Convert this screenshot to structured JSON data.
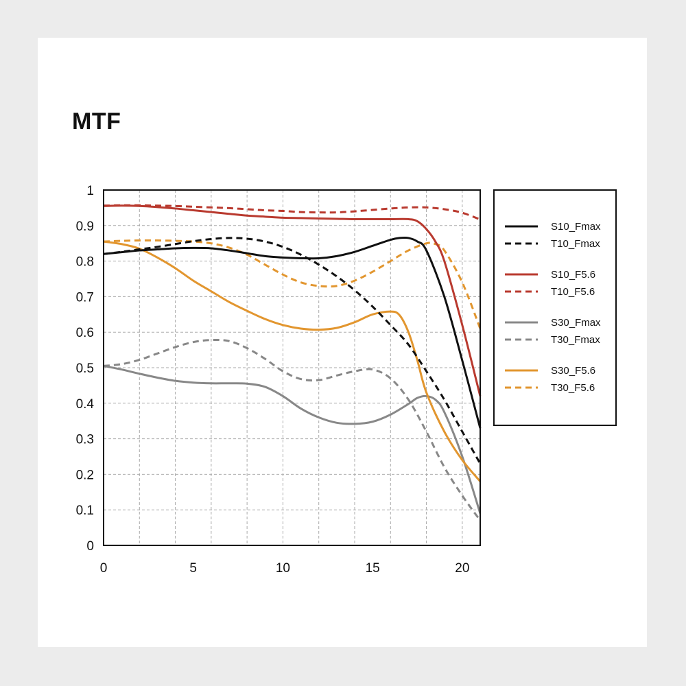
{
  "chart_data": {
    "type": "line",
    "title": "MTF",
    "xlabel": "",
    "ylabel": "",
    "xlim": [
      0,
      21
    ],
    "ylim": [
      0,
      1
    ],
    "xticks": [
      0,
      5,
      10,
      15,
      20
    ],
    "yticks": [
      0,
      0.1,
      0.2,
      0.3,
      0.4,
      0.5,
      0.6,
      0.7,
      0.8,
      0.9,
      1
    ],
    "ytick_labels": [
      "0",
      "0.1",
      "0.2",
      "0.3",
      "0.4",
      "0.5",
      "0.6",
      "0.7",
      "0.8",
      "0.9",
      "1"
    ],
    "xtick_labels": [
      "0",
      "5",
      "10",
      "15",
      "20"
    ],
    "grid": true,
    "legend_position": "right",
    "series": [
      {
        "name": "S10_Fmax",
        "color": "#111111",
        "dash": "solid",
        "x": [
          0,
          1,
          2,
          3,
          4,
          5,
          6,
          7,
          8,
          9,
          10,
          11,
          12,
          13,
          14,
          15,
          16,
          16.5,
          17,
          17.5,
          18,
          19,
          20,
          21
        ],
        "y": [
          0.82,
          0.825,
          0.83,
          0.833,
          0.836,
          0.837,
          0.836,
          0.83,
          0.822,
          0.814,
          0.81,
          0.808,
          0.808,
          0.814,
          0.826,
          0.843,
          0.86,
          0.865,
          0.865,
          0.855,
          0.83,
          0.7,
          0.52,
          0.33
        ]
      },
      {
        "name": "T10_Fmax",
        "color": "#111111",
        "dash": "dashed",
        "x": [
          0,
          1,
          2,
          3,
          4,
          5,
          6,
          7,
          8,
          9,
          10,
          11,
          12,
          13,
          14,
          15,
          16,
          17,
          18,
          19,
          20,
          21
        ],
        "y": [
          0.82,
          0.826,
          0.833,
          0.84,
          0.848,
          0.856,
          0.862,
          0.865,
          0.863,
          0.855,
          0.84,
          0.818,
          0.79,
          0.757,
          0.718,
          0.672,
          0.62,
          0.565,
          0.49,
          0.41,
          0.32,
          0.23
        ]
      },
      {
        "name": "S10_F5.6",
        "color": "#b93a2f",
        "dash": "solid",
        "x": [
          0,
          1,
          2,
          3,
          4,
          5,
          6,
          7,
          8,
          9,
          10,
          11,
          12,
          13,
          14,
          15,
          16,
          17,
          17.5,
          18,
          18.5,
          19,
          20,
          21
        ],
        "y": [
          0.955,
          0.956,
          0.955,
          0.952,
          0.948,
          0.943,
          0.938,
          0.933,
          0.928,
          0.925,
          0.922,
          0.921,
          0.92,
          0.919,
          0.918,
          0.918,
          0.918,
          0.918,
          0.912,
          0.89,
          0.855,
          0.8,
          0.62,
          0.42
        ]
      },
      {
        "name": "T10_F5.6",
        "color": "#b93a2f",
        "dash": "dashed",
        "x": [
          0,
          1,
          2,
          3,
          4,
          5,
          6,
          7,
          8,
          9,
          10,
          11,
          12,
          13,
          14,
          15,
          16,
          17,
          18,
          19,
          20,
          21
        ],
        "y": [
          0.956,
          0.957,
          0.957,
          0.956,
          0.955,
          0.953,
          0.951,
          0.949,
          0.946,
          0.943,
          0.941,
          0.938,
          0.937,
          0.937,
          0.94,
          0.944,
          0.948,
          0.951,
          0.951,
          0.946,
          0.936,
          0.917
        ]
      },
      {
        "name": "S30_Fmax",
        "color": "#888888",
        "dash": "solid",
        "x": [
          0,
          1,
          2,
          3,
          4,
          5,
          6,
          7,
          8,
          9,
          10,
          11,
          12,
          13,
          14,
          15,
          16,
          17,
          17.5,
          18,
          18.5,
          19,
          20,
          21
        ],
        "y": [
          0.505,
          0.495,
          0.483,
          0.472,
          0.463,
          0.458,
          0.456,
          0.456,
          0.455,
          0.446,
          0.42,
          0.385,
          0.36,
          0.345,
          0.342,
          0.348,
          0.368,
          0.398,
          0.415,
          0.42,
          0.41,
          0.375,
          0.25,
          0.09
        ]
      },
      {
        "name": "T30_Fmax",
        "color": "#888888",
        "dash": "dashed",
        "x": [
          0,
          1,
          2,
          3,
          4,
          5,
          6,
          7,
          8,
          9,
          10,
          11,
          12,
          13,
          14,
          15,
          16,
          17,
          18,
          19,
          20,
          21
        ],
        "y": [
          0.505,
          0.51,
          0.522,
          0.54,
          0.558,
          0.572,
          0.578,
          0.575,
          0.555,
          0.525,
          0.49,
          0.468,
          0.465,
          0.478,
          0.49,
          0.495,
          0.47,
          0.41,
          0.32,
          0.22,
          0.14,
          0.07
        ]
      },
      {
        "name": "S30_F5.6",
        "color": "#e2962f",
        "dash": "solid",
        "x": [
          0,
          1,
          2,
          3,
          4,
          5,
          6,
          7,
          8,
          9,
          10,
          11,
          12,
          13,
          14,
          15,
          16,
          16.5,
          17,
          17.5,
          18,
          19,
          20,
          21
        ],
        "y": [
          0.855,
          0.848,
          0.835,
          0.81,
          0.78,
          0.745,
          0.715,
          0.685,
          0.66,
          0.637,
          0.62,
          0.61,
          0.607,
          0.612,
          0.628,
          0.65,
          0.658,
          0.648,
          0.6,
          0.52,
          0.43,
          0.32,
          0.24,
          0.18
        ]
      },
      {
        "name": "T30_F5.6",
        "color": "#e2962f",
        "dash": "dashed",
        "x": [
          0,
          1,
          2,
          3,
          4,
          5,
          6,
          7,
          8,
          9,
          10,
          11,
          12,
          13,
          14,
          15,
          16,
          17,
          18,
          18.5,
          19,
          20,
          21
        ],
        "y": [
          0.855,
          0.857,
          0.858,
          0.858,
          0.857,
          0.855,
          0.85,
          0.838,
          0.818,
          0.79,
          0.762,
          0.74,
          0.73,
          0.73,
          0.745,
          0.77,
          0.8,
          0.83,
          0.85,
          0.848,
          0.83,
          0.74,
          0.61
        ]
      }
    ]
  }
}
